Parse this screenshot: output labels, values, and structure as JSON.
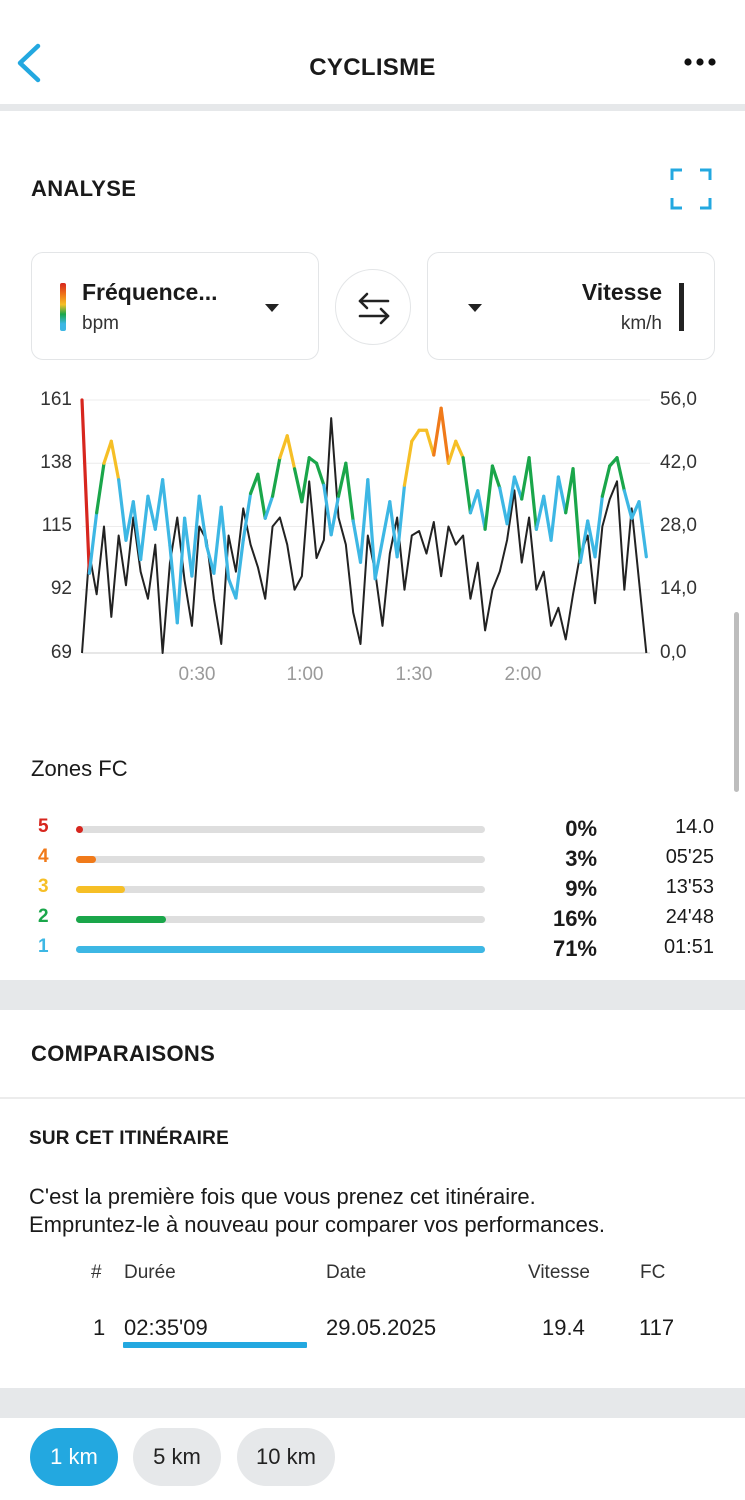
{
  "header": {
    "title": "CYCLISME"
  },
  "analysis": {
    "title": "ANALYSE",
    "left_selector": {
      "label": "Fréquence...",
      "unit": "bpm"
    },
    "right_selector": {
      "label": "Vitesse",
      "unit": "km/h"
    }
  },
  "chart_data": {
    "type": "line",
    "y_left_ticks": [
      "161",
      "138",
      "115",
      "92",
      "69"
    ],
    "y_right_ticks": [
      "56,0",
      "42,0",
      "28,0",
      "14,0",
      "0,0"
    ],
    "x_ticks": [
      "0:30",
      "1:00",
      "1:30",
      "2:00"
    ],
    "y_left_range": [
      69,
      161
    ],
    "y_right_range": [
      0,
      56
    ],
    "x_range_minutes": [
      0,
      155
    ],
    "grid": true,
    "series": [
      {
        "quantity": "heart-rate",
        "axis": "left",
        "zone_colors": [
          "#3db7e4",
          "#1aa64a",
          "#f6bf26",
          "#f07a1a",
          "#d7261e"
        ],
        "zone_thresholds": [
          134,
          143,
          152,
          159
        ],
        "x": [
          0,
          2,
          4,
          6,
          8,
          10,
          12,
          14,
          16,
          18,
          20,
          22,
          24,
          26,
          28,
          30,
          32,
          34,
          36,
          38,
          40,
          42,
          44,
          46,
          48,
          50,
          52,
          54,
          56,
          58,
          60,
          62,
          64,
          66,
          68,
          70,
          72,
          74,
          76,
          78,
          80,
          82,
          84,
          86,
          88,
          90,
          92,
          94,
          96,
          98,
          100,
          102,
          104,
          106,
          108,
          110,
          112,
          114,
          116,
          118,
          120,
          122,
          124,
          126,
          128,
          130,
          132,
          134,
          136,
          138,
          140,
          142,
          144,
          146,
          148,
          150,
          152,
          154
        ],
        "values": [
          161,
          98,
          120,
          138,
          146,
          132,
          110,
          124,
          103,
          126,
          114,
          132,
          108,
          80,
          118,
          97,
          126,
          108,
          98,
          122,
          96,
          89,
          110,
          127,
          134,
          118,
          126,
          140,
          148,
          136,
          124,
          140,
          138,
          130,
          112,
          126,
          138,
          117,
          102,
          132,
          96,
          110,
          124,
          104,
          130,
          146,
          150,
          150,
          141,
          158,
          138,
          146,
          140,
          120,
          128,
          114,
          137,
          129,
          116,
          133,
          125,
          140,
          114,
          126,
          110,
          133,
          120,
          136,
          102,
          117,
          104,
          126,
          137,
          140,
          128,
          118,
          124,
          104
        ]
      },
      {
        "quantity": "speed",
        "axis": "right",
        "color": "#222222",
        "x": [
          0,
          2,
          4,
          6,
          8,
          10,
          12,
          14,
          16,
          18,
          20,
          22,
          24,
          26,
          28,
          30,
          32,
          34,
          36,
          38,
          40,
          42,
          44,
          46,
          48,
          50,
          52,
          54,
          56,
          58,
          60,
          62,
          64,
          66,
          68,
          70,
          72,
          74,
          76,
          78,
          80,
          82,
          84,
          86,
          88,
          90,
          92,
          94,
          96,
          98,
          100,
          102,
          104,
          106,
          108,
          110,
          112,
          114,
          116,
          118,
          120,
          122,
          124,
          126,
          128,
          130,
          132,
          134,
          136,
          138,
          140,
          142,
          144,
          146,
          148,
          150,
          152,
          154
        ],
        "values": [
          0,
          22,
          13,
          28,
          8,
          26,
          15,
          30,
          18,
          12,
          24,
          0,
          20,
          30,
          16,
          6,
          28,
          25,
          12,
          2,
          26,
          18,
          32,
          24,
          19,
          12,
          28,
          30,
          24,
          14,
          17,
          38,
          21,
          25,
          52,
          30,
          24,
          9,
          2,
          26,
          18,
          6,
          22,
          30,
          14,
          26,
          27,
          22,
          29,
          17,
          28,
          24,
          26,
          12,
          20,
          5,
          14,
          18,
          25,
          36,
          20,
          30,
          14,
          18,
          6,
          10,
          3,
          13,
          22,
          26,
          11,
          28,
          34,
          38,
          14,
          32,
          16,
          0
        ]
      }
    ]
  },
  "zones": {
    "title": "Zones FC",
    "items": [
      {
        "num": "5",
        "pct": "0%",
        "time": "14.0",
        "fill": 0.01,
        "color": "#d7261e"
      },
      {
        "num": "4",
        "pct": "3%",
        "time": "05'25",
        "fill": 0.05,
        "color": "#f07a1a"
      },
      {
        "num": "3",
        "pct": "9%",
        "time": "13'53",
        "fill": 0.12,
        "color": "#f6bf26"
      },
      {
        "num": "2",
        "pct": "16%",
        "time": "24'48",
        "fill": 0.22,
        "color": "#1aa64a"
      },
      {
        "num": "1",
        "pct": "71%",
        "time": "01:51",
        "fill": 1.0,
        "color": "#3db7e4"
      }
    ]
  },
  "comparisons": {
    "title": "COMPARAISONS",
    "subtitle": "SUR CET ITINÉRAIRE",
    "text_line1": "C'est la première fois que vous prenez cet itinéraire.",
    "text_line2": "Empruntez-le à nouveau pour comparer vos performances.",
    "headers": {
      "num": "#",
      "duration": "Durée",
      "date": "Date",
      "speed": "Vitesse",
      "hr": "FC"
    },
    "rows": [
      {
        "num": "1",
        "duration": "02:35'09",
        "date": "29.05.2025",
        "speed": "19.4",
        "hr": "117"
      }
    ]
  },
  "laps": {
    "options": [
      "1 km",
      "5 km",
      "10 km"
    ],
    "selected": "1 km"
  },
  "colors": {
    "accent": "#23a8e0",
    "divider": "#e6e8ea"
  }
}
